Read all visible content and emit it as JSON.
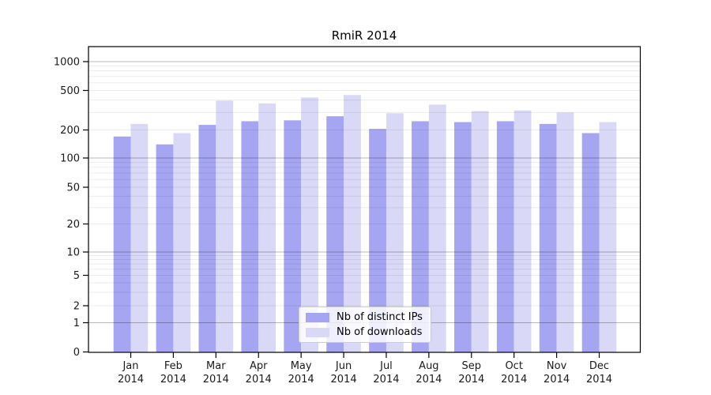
{
  "chart_data": {
    "type": "bar",
    "title": "RmiR 2014",
    "yscale": "symlog",
    "ylim": [
      0,
      1000
    ],
    "y_ticks": [
      0,
      1,
      2,
      5,
      10,
      20,
      50,
      100,
      200,
      500,
      1000
    ],
    "grid": true,
    "legend_position": "lower center inside plot",
    "categories": [
      "Jan",
      "Feb",
      "Mar",
      "Apr",
      "May",
      "Jun",
      "Jul",
      "Aug",
      "Sep",
      "Oct",
      "Nov",
      "Dec"
    ],
    "category_year": "2014",
    "series": [
      {
        "name": "Nb of distinct IPs",
        "color": "#a5a5f1",
        "values": [
          170,
          140,
          225,
          245,
          250,
          275,
          205,
          245,
          240,
          245,
          230,
          185
        ]
      },
      {
        "name": "Nb of downloads",
        "color": "#d9d9f7",
        "values": [
          230,
          185,
          395,
          370,
          425,
          450,
          295,
          360,
          310,
          315,
          300,
          240
        ]
      }
    ],
    "colors": {
      "axis": "#000000",
      "major_grid": "rgba(0,0,0,0.28)",
      "minor_grid": "rgba(0,0,0,0.08)",
      "tick_label": "#1a1a1a"
    }
  }
}
